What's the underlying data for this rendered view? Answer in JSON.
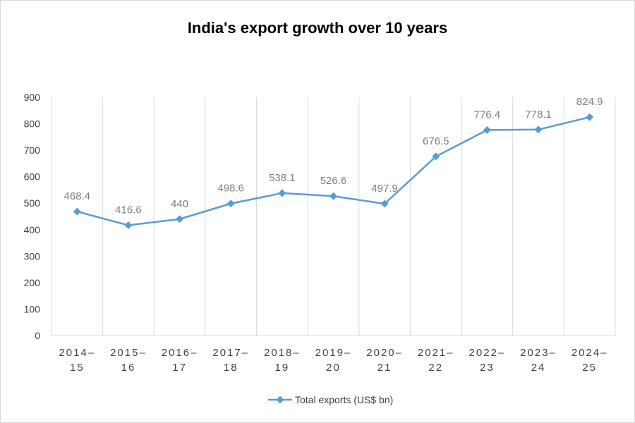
{
  "chart_data": {
    "type": "line",
    "title": "India's export growth over 10 years",
    "xlabel": "",
    "ylabel": "",
    "categories": [
      [
        "2014–",
        "15"
      ],
      [
        "2015–",
        "16"
      ],
      [
        "2016–",
        "17"
      ],
      [
        "2017–",
        "18"
      ],
      [
        "2018–",
        "19"
      ],
      [
        "2019–",
        "20"
      ],
      [
        "2020–",
        "21"
      ],
      [
        "2021–",
        "22"
      ],
      [
        "2022–",
        "23"
      ],
      [
        "2023–",
        "24"
      ],
      [
        "2024–",
        "25"
      ]
    ],
    "series": [
      {
        "name": "Total exports (US$ bn)",
        "color": "#5b9bd5",
        "marker": "diamond",
        "values": [
          468.4,
          416.6,
          440,
          498.6,
          538.1,
          526.6,
          497.9,
          676.5,
          776.4,
          778.1,
          824.9
        ],
        "labels": [
          "468.4",
          "416.6",
          "440",
          "498.6",
          "538.1",
          "526.6",
          "497.9",
          "676.5",
          "776.4",
          "778.1",
          "824.9"
        ]
      }
    ],
    "ylim": [
      0,
      900
    ],
    "yticks": [
      0,
      100,
      200,
      300,
      400,
      500,
      600,
      700,
      800,
      900
    ],
    "grid": "vertical",
    "gridColor": "#d9d9d9",
    "legend": "bottom"
  }
}
